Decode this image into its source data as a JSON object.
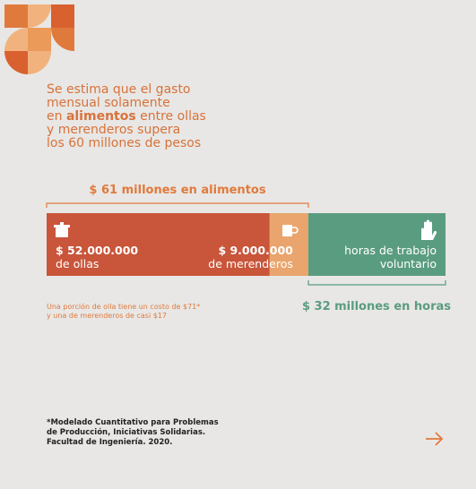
{
  "headline": {
    "lines": [
      [
        {
          "text": "Se estima que el gasto"
        }
      ],
      [
        {
          "text": "mensual solamente"
        }
      ],
      [
        {
          "text": "en "
        },
        {
          "text": "alimentos",
          "bold": true
        },
        {
          "text": " entre ollas"
        }
      ],
      [
        {
          "text": "y merenderos supera"
        }
      ],
      [
        {
          "text": "los 60 millones de pesos"
        }
      ]
    ]
  },
  "food_total": "$ 61 millones en alimentos",
  "segments": [
    {
      "value": 52000000,
      "amount": "$ 52.000.000",
      "label": "de ollas",
      "color": "#c9553a"
    },
    {
      "value": 9000000,
      "amount": "$ 9.000.000",
      "label": "de merenderos",
      "color": "#e9a56d"
    },
    {
      "value": 32000000,
      "lines": [
        "horas de trabajo",
        "voluntario"
      ],
      "color": "#5a9c80"
    }
  ],
  "hours_total": "$ 32 millones en horas",
  "cost_note": [
    "Una porción de olla tiene un costo de $71*",
    "y una de merenderos de casi $17"
  ],
  "source": [
    "*Modelado Cuantitativo para Problemas",
    "de Producción, Iniciativas Solidarias.",
    "Facultad de Ingeniería. 2020."
  ]
}
